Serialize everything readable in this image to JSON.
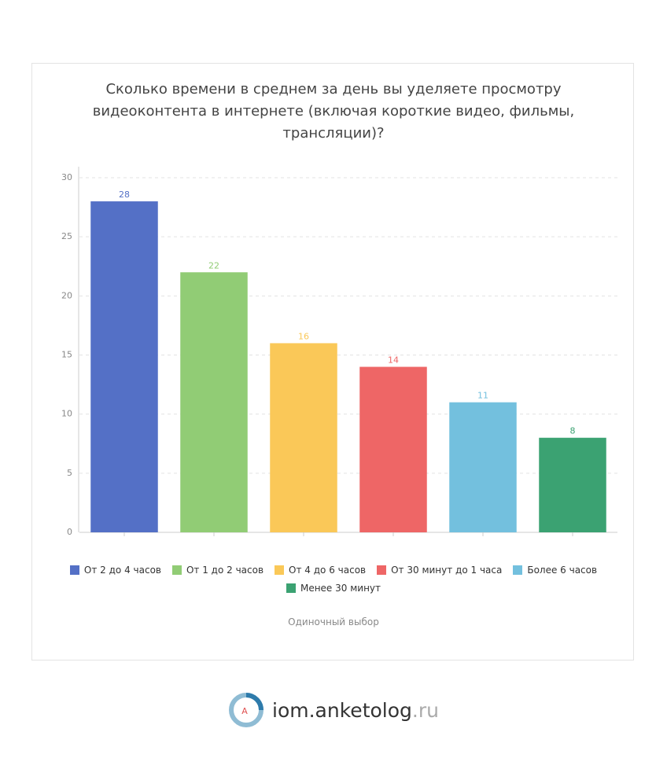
{
  "chart_data": {
    "type": "bar",
    "title": "Сколько времени в среднем за день вы уделяете просмотру видеоконтента в интернете (включая короткие видео, фильмы, трансляции)?",
    "categories": [
      "От 2 до 4 часов",
      "От 1 до 2 часов",
      "От 4 до 6 часов",
      "От 30 минут до 1 часа",
      "Более 6 часов",
      "Менее 30 минут"
    ],
    "values": [
      28,
      22,
      16,
      14,
      11,
      8
    ],
    "colors": [
      "#5470c6",
      "#91cc75",
      "#fac858",
      "#ee6666",
      "#73c0de",
      "#3ba272"
    ],
    "ylim": [
      0,
      30
    ],
    "yticks": [
      0,
      5,
      10,
      15,
      20,
      25,
      30
    ],
    "grid": true,
    "note": "Одиночный выбор"
  },
  "brand": {
    "name": "iom.anketolog",
    "domain": ".ru",
    "icon": "A"
  }
}
